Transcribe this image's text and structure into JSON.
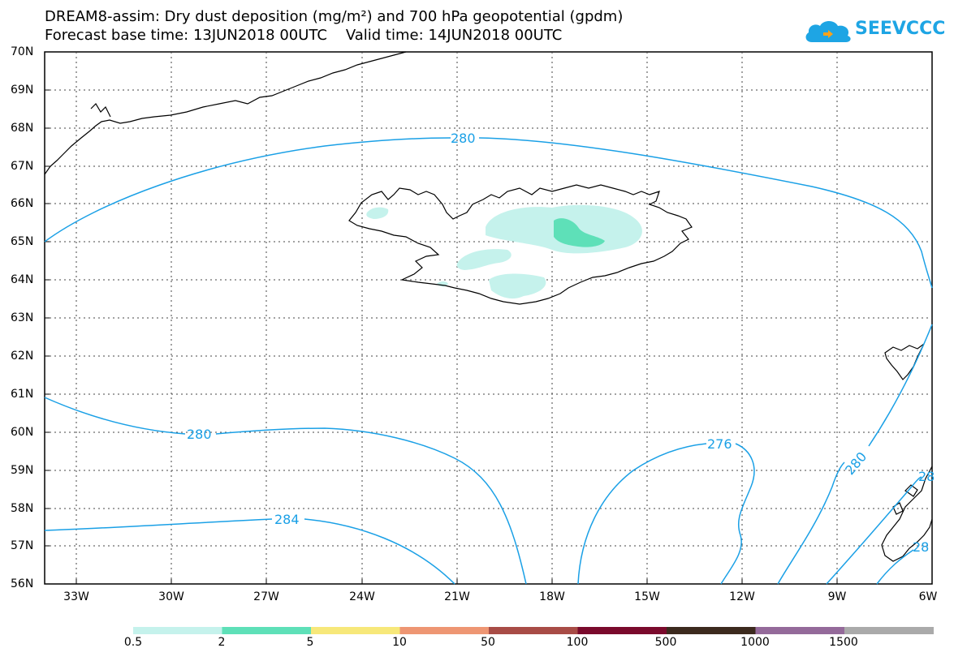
{
  "title": {
    "line1": "DREAM8-assim: Dry dust deposition (mg/m²) and 700 hPa geopotential (gpdm)",
    "line2": "Forecast base time: 13JUN2018 00UTC    Valid time: 14JUN2018 00UTC"
  },
  "logo": {
    "text": "SEEVCCC",
    "color": "#1ea5e4"
  },
  "axes": {
    "lat_labels": [
      "70N",
      "69N",
      "68N",
      "67N",
      "66N",
      "65N",
      "64N",
      "63N",
      "62N",
      "61N",
      "60N",
      "59N",
      "58N",
      "57N",
      "56N"
    ],
    "lon_labels": [
      "33W",
      "30W",
      "27W",
      "24W",
      "21W",
      "18W",
      "15W",
      "12W",
      "9W",
      "6W"
    ],
    "lat_range": [
      56,
      70
    ],
    "lon_range": [
      -34.5,
      -6
    ]
  },
  "contours": {
    "color": "#1aa0e6",
    "labels": [
      "280",
      "280",
      "284",
      "276",
      "280",
      "28",
      "28"
    ]
  },
  "colorbar": {
    "labels": [
      "0.5",
      "2",
      "5",
      "10",
      "50",
      "100",
      "500",
      "1000",
      "1500"
    ],
    "colors": [
      "#c5f2ec",
      "#5ee0b8",
      "#f7e87a",
      "#ee9673",
      "#a84c46",
      "#7a0a2c",
      "#3c2a1e",
      "#946a9a",
      "#aaaaaa"
    ]
  },
  "deposition_colors": {
    "low": "#c5f2ec",
    "mid": "#5ee0b8"
  }
}
